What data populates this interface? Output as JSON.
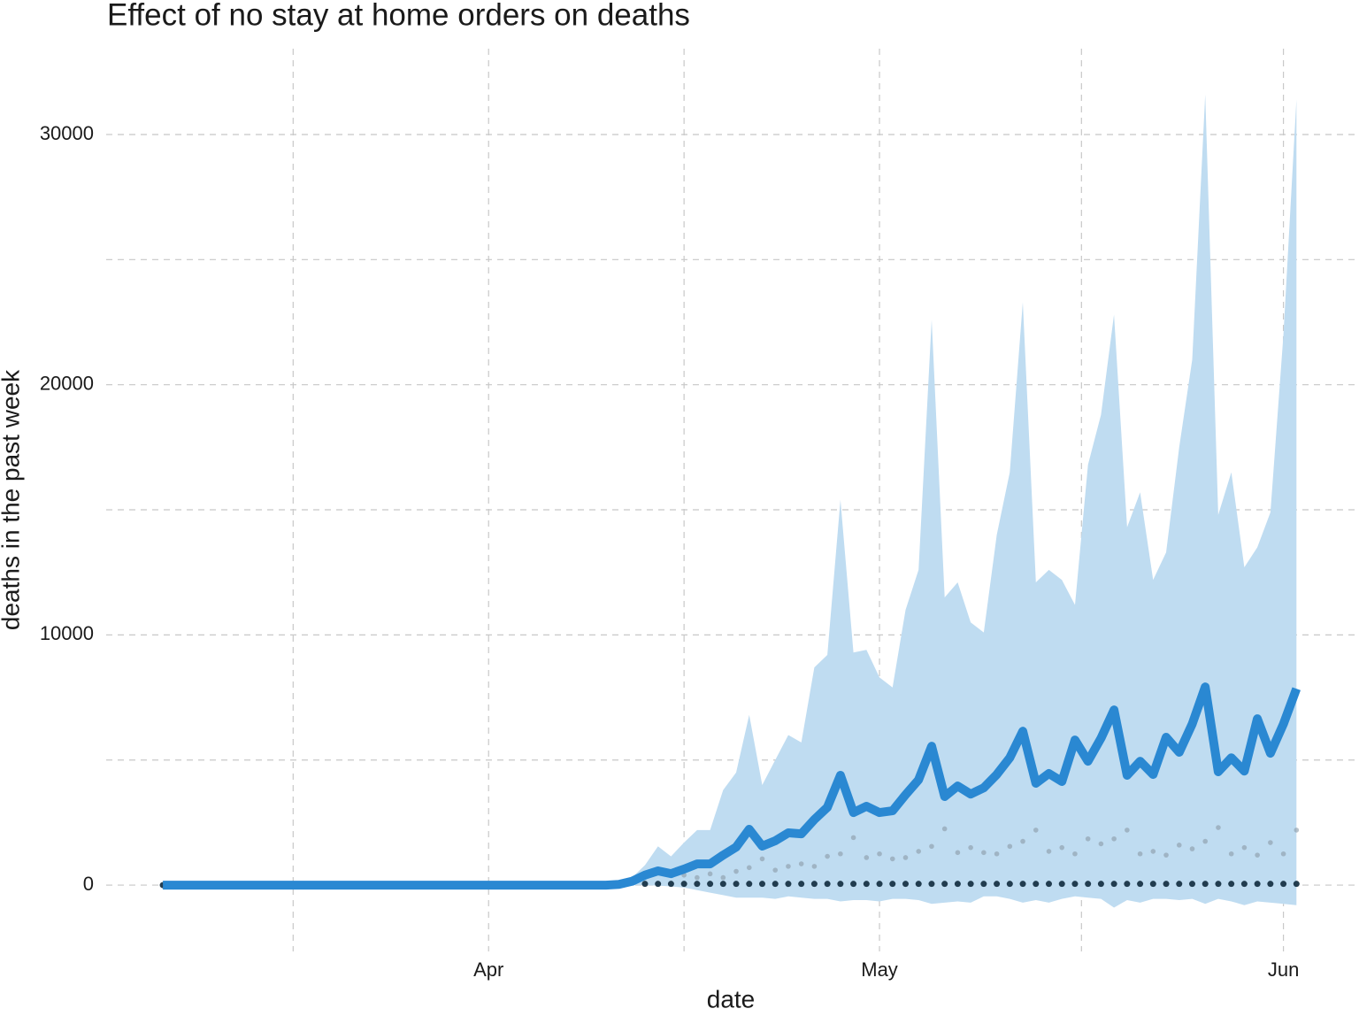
{
  "chart_data": {
    "type": "line",
    "title": "Effect of no stay at home orders on deaths",
    "x_label": "date",
    "y_label": "deaths in the past week",
    "x": [
      0,
      1,
      2,
      3,
      4,
      5,
      6,
      7,
      8,
      9,
      10,
      11,
      12,
      13,
      14,
      15,
      16,
      17,
      18,
      19,
      20,
      21,
      22,
      23,
      24,
      25,
      26,
      27,
      28,
      29,
      30,
      31,
      32,
      33,
      34,
      35,
      36,
      37,
      38,
      39,
      40,
      41,
      42,
      43,
      44,
      45,
      46,
      47,
      48,
      49,
      50,
      51,
      52,
      53,
      54,
      55,
      56,
      57,
      58,
      59,
      60,
      61,
      62,
      63,
      64,
      65,
      66,
      67,
      68,
      69,
      70,
      71,
      72,
      73,
      74,
      75,
      76,
      77,
      78,
      79,
      80,
      81,
      82,
      83,
      84,
      85,
      86,
      87
    ],
    "values": [
      0,
      0,
      0,
      0,
      0,
      0,
      0,
      0,
      0,
      0,
      0,
      0,
      0,
      0,
      0,
      0,
      0,
      0,
      0,
      0,
      0,
      0,
      0,
      0,
      0,
      0,
      0,
      0,
      0,
      0,
      0,
      0,
      0,
      0,
      0,
      30,
      150,
      400,
      570,
      460,
      640,
      850,
      850,
      1200,
      1520,
      2230,
      1560,
      1770,
      2090,
      2050,
      2620,
      3110,
      4390,
      2900,
      3150,
      2900,
      2970,
      3610,
      4210,
      5550,
      3540,
      3960,
      3640,
      3890,
      4420,
      5090,
      6150,
      4070,
      4460,
      4140,
      5800,
      4950,
      5870,
      7000,
      4390,
      4950,
      4420,
      5910,
      5310,
      6440,
      7920,
      4530,
      5090,
      4560,
      6650,
      5270,
      6440,
      7850
    ],
    "color": "#2a88d2",
    "band": {
      "color": "#bfdcf1",
      "upper": [
        0,
        0,
        0,
        0,
        0,
        0,
        0,
        0,
        0,
        0,
        0,
        0,
        0,
        0,
        0,
        0,
        0,
        0,
        0,
        0,
        0,
        0,
        0,
        0,
        0,
        0,
        0,
        0,
        0,
        0,
        0,
        0,
        0,
        0,
        0,
        60,
        300,
        800,
        1550,
        1150,
        1700,
        2200,
        2200,
        3800,
        4500,
        6800,
        4000,
        5000,
        6000,
        5700,
        8700,
        9200,
        15400,
        9300,
        9400,
        8300,
        7900,
        11000,
        12600,
        22600,
        11500,
        12100,
        10500,
        10100,
        14000,
        16500,
        23300,
        12100,
        12600,
        12200,
        11200,
        16800,
        18800,
        22800,
        14300,
        15700,
        12200,
        13300,
        17500,
        21000,
        31600,
        14800,
        16500,
        12700,
        13500,
        14900,
        22000,
        31400
      ],
      "lower": [
        0,
        0,
        0,
        0,
        0,
        0,
        0,
        0,
        0,
        0,
        0,
        0,
        0,
        0,
        0,
        0,
        0,
        0,
        0,
        0,
        0,
        0,
        0,
        0,
        0,
        0,
        0,
        0,
        0,
        0,
        0,
        0,
        0,
        0,
        0,
        0,
        0,
        0,
        -20,
        -50,
        -100,
        -200,
        -300,
        -400,
        -500,
        -500,
        -500,
        -550,
        -450,
        -500,
        -550,
        -550,
        -650,
        -600,
        -600,
        -650,
        -550,
        -550,
        -600,
        -750,
        -700,
        -650,
        -700,
        -450,
        -450,
        -550,
        -700,
        -600,
        -700,
        -550,
        -450,
        -500,
        -550,
        -900,
        -600,
        -700,
        -550,
        -550,
        -600,
        -550,
        -750,
        -550,
        -650,
        -800,
        -650,
        -700,
        -750,
        -800
      ]
    },
    "points": [
      {
        "color": "#8a9aa6",
        "values": [
          null,
          null,
          null,
          null,
          null,
          null,
          null,
          null,
          null,
          null,
          null,
          null,
          null,
          null,
          null,
          null,
          null,
          null,
          null,
          null,
          null,
          null,
          null,
          null,
          null,
          null,
          null,
          null,
          null,
          null,
          null,
          null,
          null,
          null,
          null,
          null,
          null,
          null,
          null,
          null,
          400,
          300,
          450,
          300,
          550,
          700,
          1050,
          600,
          750,
          850,
          750,
          1150,
          1250,
          1900,
          1100,
          1250,
          1050,
          1100,
          1350,
          1550,
          2250,
          1300,
          1500,
          1300,
          1250,
          1550,
          1750,
          2200,
          1350,
          1500,
          1250,
          1850,
          1650,
          1850,
          2200,
          1250,
          1350,
          1200,
          1600,
          1450,
          1750,
          2300,
          1250,
          1500,
          1200,
          1700,
          1250,
          2200
        ]
      },
      {
        "color": "#0f2a3d",
        "values": [
          0,
          null,
          null,
          null,
          null,
          null,
          null,
          null,
          null,
          null,
          null,
          null,
          null,
          null,
          null,
          null,
          null,
          null,
          null,
          null,
          null,
          null,
          null,
          null,
          null,
          null,
          null,
          null,
          null,
          null,
          null,
          null,
          null,
          null,
          null,
          null,
          null,
          50,
          50,
          50,
          50,
          50,
          50,
          50,
          50,
          50,
          50,
          50,
          50,
          50,
          50,
          50,
          50,
          50,
          50,
          50,
          50,
          50,
          50,
          50,
          50,
          50,
          50,
          50,
          50,
          50,
          50,
          50,
          50,
          50,
          50,
          50,
          50,
          50,
          50,
          50,
          50,
          50,
          50,
          50,
          50,
          50,
          50,
          50,
          50,
          50,
          50,
          50
        ]
      }
    ],
    "xlim": [
      -4.35,
      91.8
    ],
    "xticks": [
      {
        "value": 25,
        "label": "Apr"
      },
      {
        "value": 55,
        "label": "May"
      },
      {
        "value": 86,
        "label": "Jun"
      }
    ],
    "xminor": [
      10,
      40,
      70.5
    ],
    "ylim": [
      -2650,
      33430
    ],
    "yticks": [
      0,
      10000,
      20000,
      30000
    ],
    "yminor": [
      5000,
      15000,
      25000
    ],
    "grid": true
  }
}
